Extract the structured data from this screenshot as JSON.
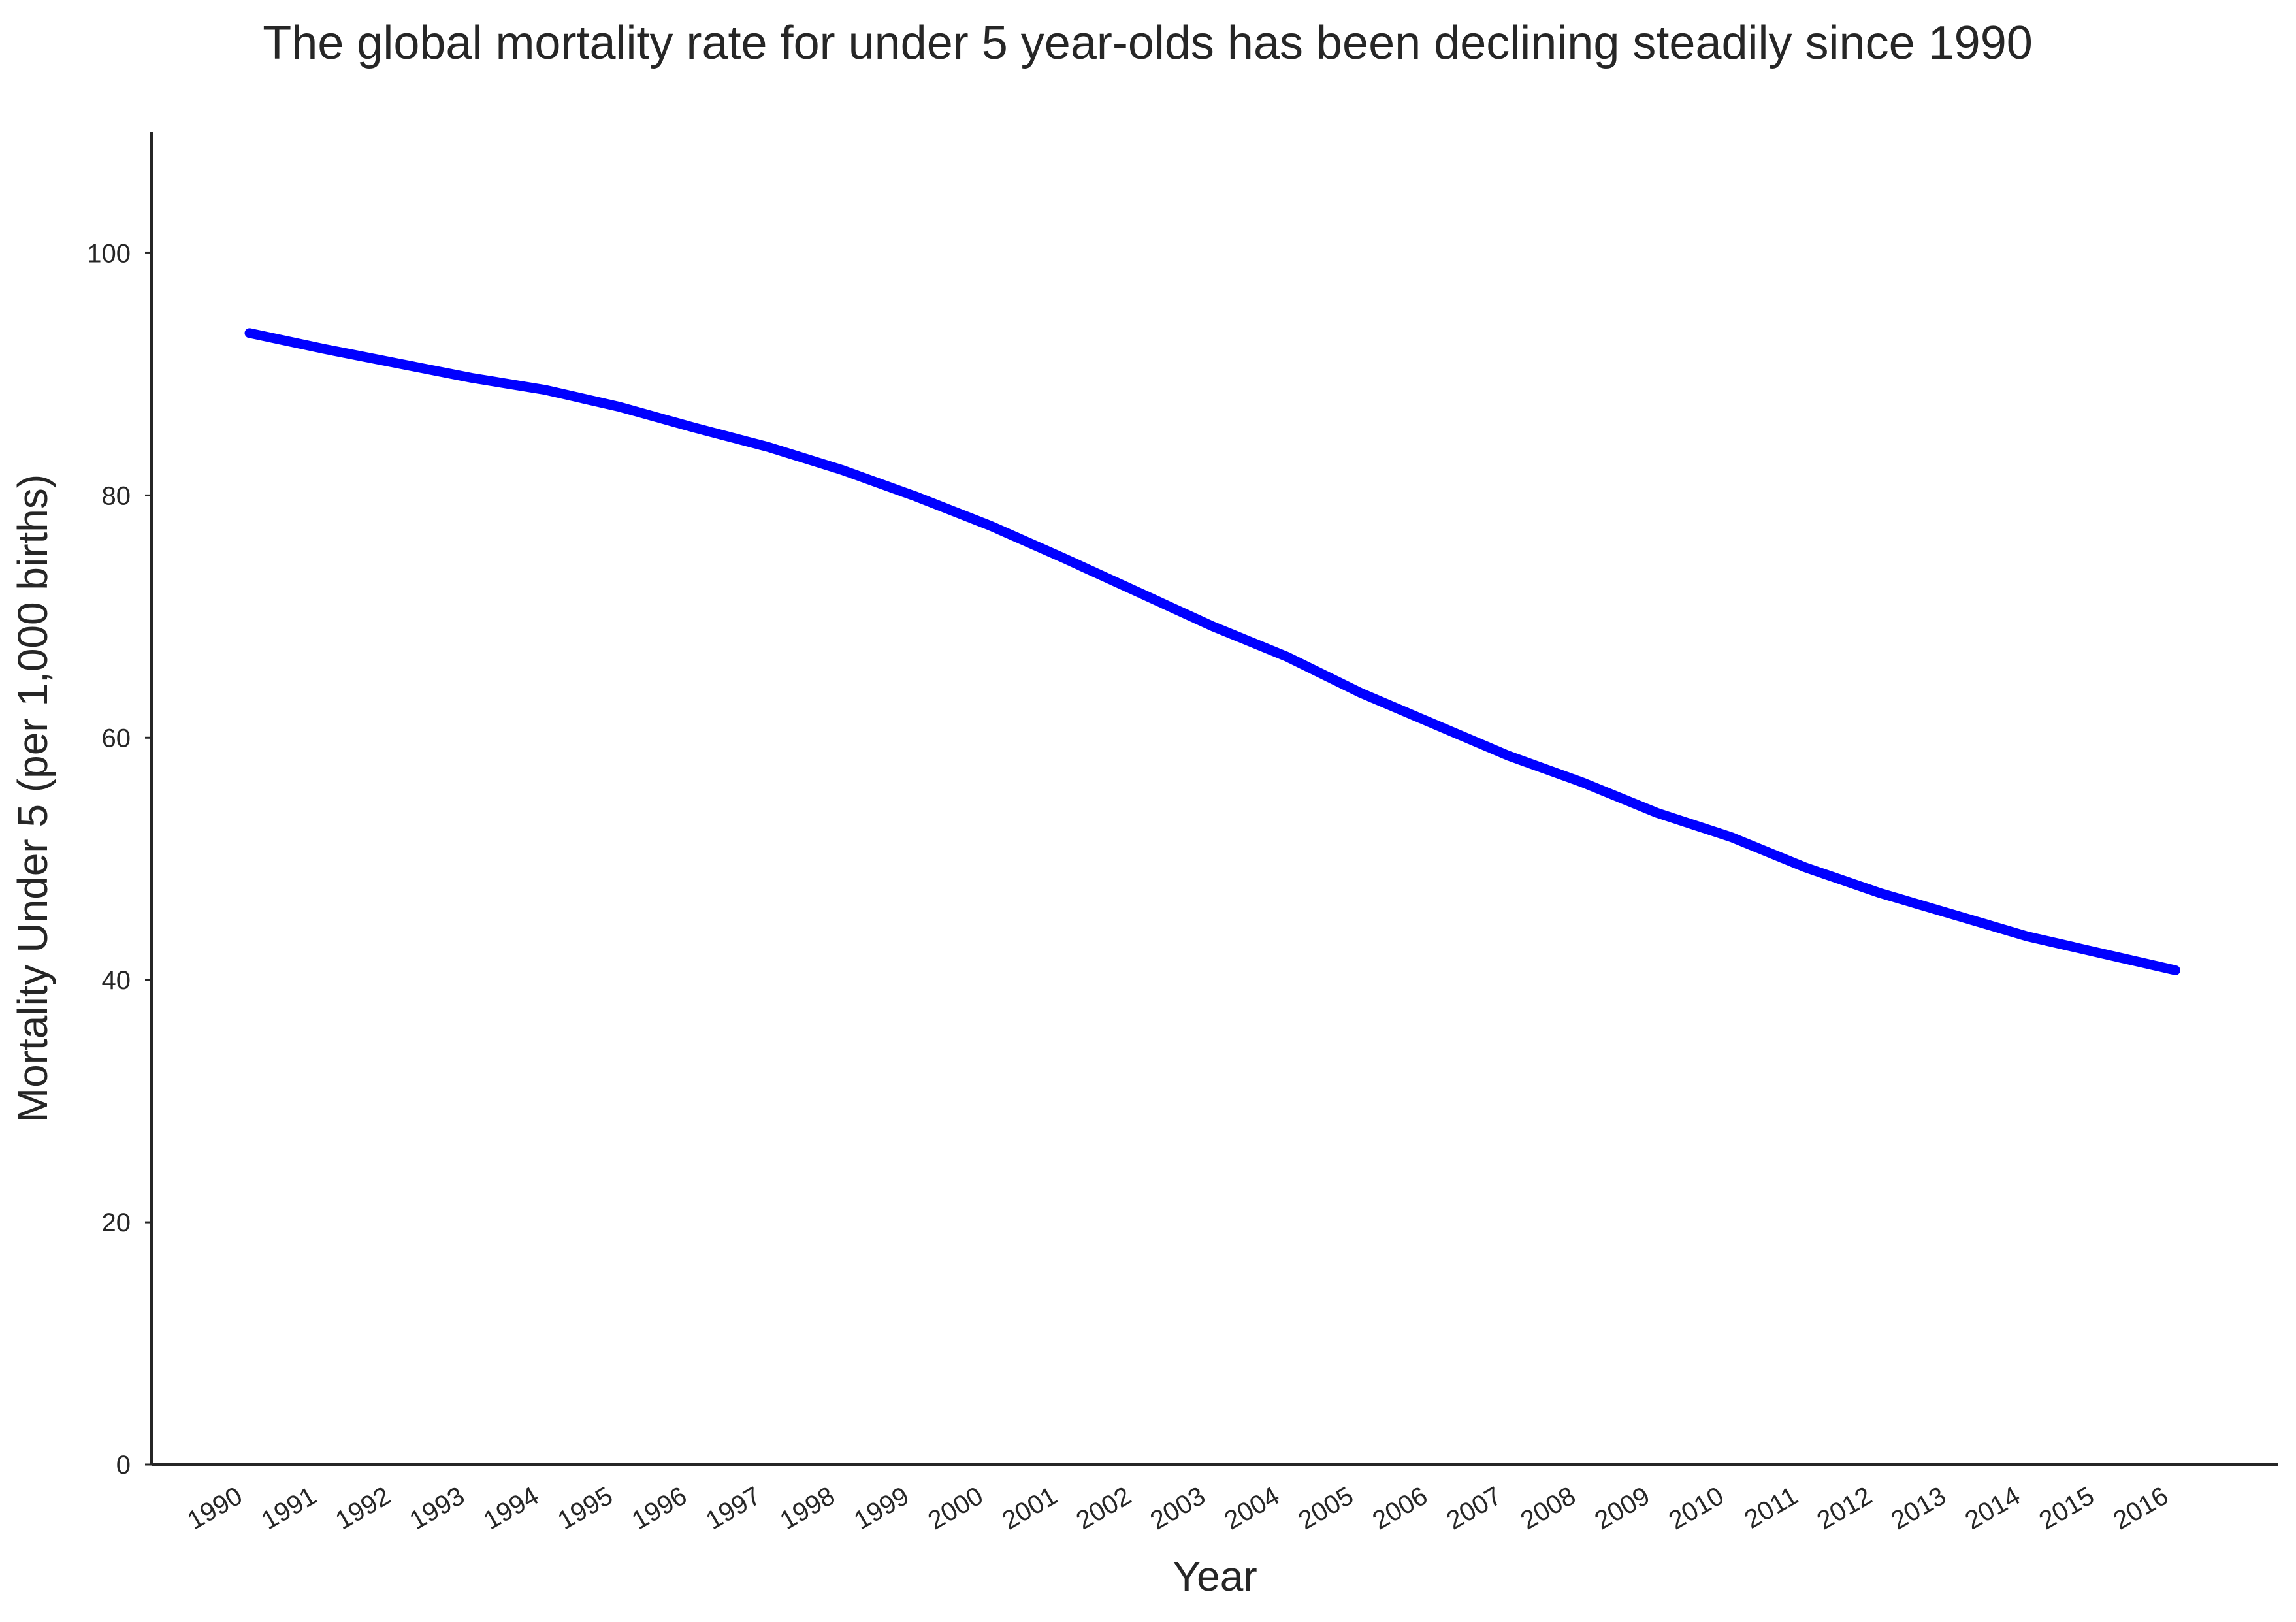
{
  "chart_data": {
    "type": "line",
    "title": "The global mortality rate for under 5 year-olds has been declining steadily since 1990",
    "xlabel": "Year",
    "ylabel": "Mortality Under 5 (per 1,000 births)",
    "ylim": [
      0,
      110
    ],
    "yticks": [
      0,
      20,
      40,
      60,
      80,
      100
    ],
    "grid": false,
    "legend": "none",
    "x": [
      1990,
      1991,
      1992,
      1993,
      1994,
      1995,
      1996,
      1997,
      1998,
      1999,
      2000,
      2001,
      2002,
      2003,
      2004,
      2005,
      2006,
      2007,
      2008,
      2009,
      2010,
      2011,
      2012,
      2013,
      2014,
      2015,
      2016
    ],
    "series": [
      {
        "color": "#0000ff",
        "values": [
          93.4,
          92.1,
          90.9,
          89.7,
          88.7,
          87.3,
          85.6,
          84.0,
          82.1,
          79.9,
          77.5,
          74.8,
          72.0,
          69.2,
          66.7,
          63.7,
          61.1,
          58.5,
          56.3,
          53.8,
          51.8,
          49.3,
          47.2,
          45.4,
          43.6,
          42.2,
          40.8
        ]
      }
    ]
  }
}
